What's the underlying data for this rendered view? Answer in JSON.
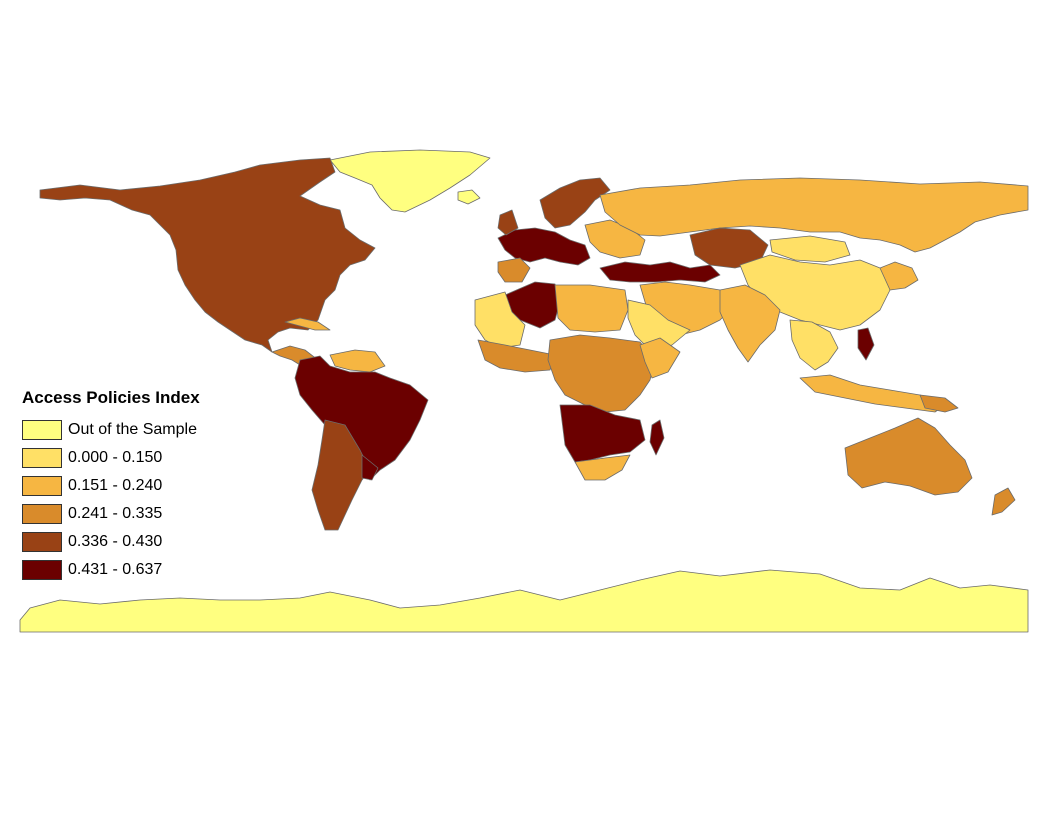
{
  "map": {
    "title": "Access Policies Index",
    "projection": "equirectangular",
    "classes": [
      {
        "label": "Out of the Sample",
        "color": "#ffff80"
      },
      {
        "label": "0.000 - 0.150",
        "color": "#ffe066"
      },
      {
        "label": "0.151 - 0.240",
        "color": "#f6b642"
      },
      {
        "label": "0.241 - 0.335",
        "color": "#d98b2b"
      },
      {
        "label": "0.336 - 0.430",
        "color": "#994215"
      },
      {
        "label": "0.431 - 0.637",
        "color": "#6b0000"
      }
    ],
    "border_color": "#6b6b6b"
  }
}
